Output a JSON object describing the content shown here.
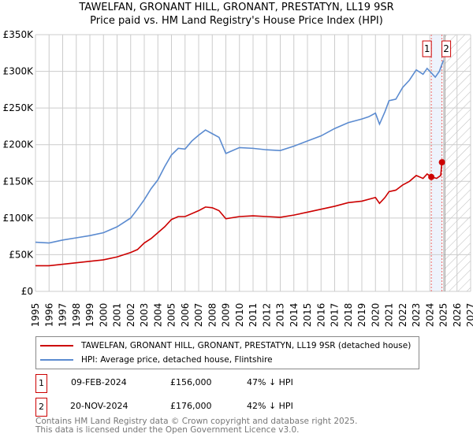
{
  "title": "TAWELFAN, GRONANT HILL, GRONANT, PRESTATYN, LL19 9SR",
  "subtitle": "Price paid vs. HM Land Registry's House Price Index (HPI)",
  "chart_data": {
    "type": "line",
    "title": "TAWELFAN, GRONANT HILL, GRONANT, PRESTATYN, LL19 9SR",
    "subtitle": "Price paid vs. HM Land Registry's House Price Index (HPI)",
    "xlim": [
      1995,
      2027
    ],
    "ylim": [
      0,
      350000
    ],
    "x_ticks": [
      "1995",
      "1996",
      "1997",
      "1998",
      "1999",
      "2000",
      "2001",
      "2002",
      "2003",
      "2004",
      "2005",
      "2006",
      "2007",
      "2008",
      "2009",
      "2010",
      "2011",
      "2012",
      "2013",
      "2014",
      "2015",
      "2016",
      "2017",
      "2018",
      "2019",
      "2020",
      "2021",
      "2022",
      "2023",
      "2024",
      "2025",
      "2026",
      "2027"
    ],
    "y_ticks": [
      {
        "v": 0,
        "label": "£0"
      },
      {
        "v": 50000,
        "label": "£50K"
      },
      {
        "v": 100000,
        "label": "£100K"
      },
      {
        "v": 150000,
        "label": "£150K"
      },
      {
        "v": 200000,
        "label": "£200K"
      },
      {
        "v": 250000,
        "label": "£250K"
      },
      {
        "v": 300000,
        "label": "£300K"
      },
      {
        "v": 350000,
        "label": "£350K"
      }
    ],
    "grid": true,
    "shaded_range": [
      2024.11,
      2024.89
    ],
    "forecast_from": 2025.1,
    "series": [
      {
        "name": "TAWELFAN, GRONANT HILL, GRONANT, PRESTATYN, LL19 9SR (detached house)",
        "color": "#cc0000",
        "x": [
          1995,
          1996,
          1997,
          1998,
          1999,
          2000,
          2001,
          2002,
          2002.5,
          2003,
          2003.5,
          2004,
          2004.5,
          2005,
          2005.5,
          2006,
          2007,
          2007.5,
          2008,
          2008.5,
          2009,
          2010,
          2011,
          2012,
          2013,
          2014,
          2015,
          2016,
          2017,
          2018,
          2019,
          2020,
          2020.3,
          2020.7,
          2021,
          2021.5,
          2022,
          2022.5,
          2023,
          2023.5,
          2023.8,
          2024.11,
          2024.5,
          2024.8,
          2024.89,
          2025
        ],
        "y": [
          35000,
          35000,
          37000,
          39000,
          41000,
          43000,
          47000,
          53000,
          57000,
          66000,
          72000,
          80000,
          88000,
          98000,
          102000,
          102000,
          110000,
          115000,
          114000,
          110000,
          99000,
          102000,
          103000,
          102000,
          101000,
          104000,
          108000,
          112000,
          116000,
          121000,
          123000,
          128000,
          120000,
          128000,
          136000,
          138000,
          145000,
          150000,
          158000,
          154000,
          160000,
          156000,
          154000,
          158000,
          176000,
          180000
        ]
      },
      {
        "name": "HPI: Average price, detached house, Flintshire",
        "color": "#5b8bd0",
        "x": [
          1995,
          1996,
          1997,
          1998,
          1999,
          2000,
          2001,
          2002,
          2002.5,
          2003,
          2003.5,
          2004,
          2004.5,
          2005,
          2005.5,
          2006,
          2006.5,
          2007,
          2007.5,
          2008,
          2008.5,
          2009,
          2009.5,
          2010,
          2011,
          2012,
          2013,
          2014,
          2015,
          2016,
          2017,
          2018,
          2019,
          2019.5,
          2020,
          2020.3,
          2020.7,
          2021,
          2021.5,
          2022,
          2022.5,
          2023,
          2023.5,
          2023.8,
          2024.1,
          2024.4,
          2024.7,
          2025
        ],
        "y": [
          67000,
          66000,
          70000,
          73000,
          76000,
          80000,
          88000,
          100000,
          112000,
          125000,
          140000,
          152000,
          170000,
          186000,
          195000,
          194000,
          205000,
          213000,
          220000,
          215000,
          210000,
          188000,
          192000,
          196000,
          195000,
          193000,
          192000,
          198000,
          205000,
          212000,
          222000,
          230000,
          235000,
          238000,
          243000,
          228000,
          245000,
          260000,
          262000,
          278000,
          288000,
          302000,
          296000,
          304000,
          298000,
          292000,
          300000,
          315000
        ]
      }
    ],
    "markers": [
      {
        "label": "1",
        "x": 2024.11,
        "y": 156000
      },
      {
        "label": "2",
        "x": 2024.89,
        "y": 176000
      }
    ],
    "legend": "below"
  },
  "legend": {
    "property": "TAWELFAN, GRONANT HILL, GRONANT, PRESTATYN, LL19 9SR (detached house)",
    "hpi": "HPI: Average price, detached house, Flintshire"
  },
  "transactions": [
    {
      "num": "1",
      "date": "09-FEB-2024",
      "price": "£156,000",
      "delta": "47% ↓ HPI"
    },
    {
      "num": "2",
      "date": "20-NOV-2024",
      "price": "£176,000",
      "delta": "42% ↓ HPI"
    }
  ],
  "footer": {
    "line1": "Contains HM Land Registry data © Crown copyright and database right 2025.",
    "line2": "This data is licensed under the Open Government Licence v3.0."
  }
}
